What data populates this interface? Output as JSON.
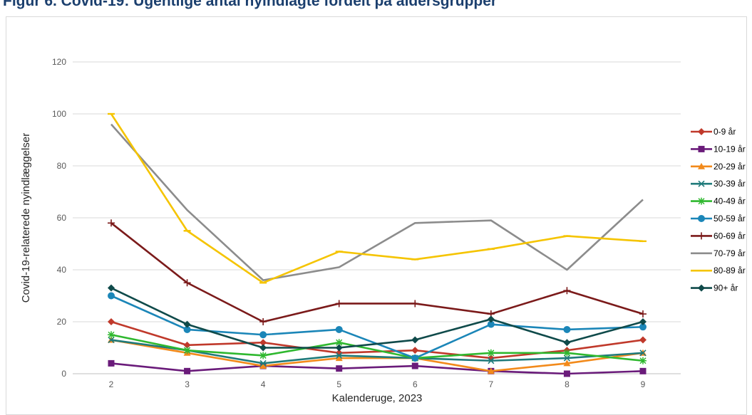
{
  "figure": {
    "title": "Figur 6. Covid-19: Ugentlige antal nyindlagte fordelt på aldersgrupper"
  },
  "chart_data": {
    "type": "line",
    "xlabel": "Kalenderuge, 2023",
    "ylabel": "Covid-19-relaterede nyindlæggelser",
    "x": [
      2,
      3,
      4,
      5,
      6,
      7,
      8,
      9
    ],
    "ylim": [
      0,
      120
    ],
    "yticks": [
      0,
      20,
      40,
      60,
      80,
      100,
      120
    ],
    "grid": "horizontal",
    "legend_position": "right",
    "series": [
      {
        "name": "0-9 år",
        "color": "#c0392b",
        "marker": "diamond",
        "values": [
          20,
          11,
          12,
          8,
          9,
          6,
          9,
          13
        ]
      },
      {
        "name": "10-19 år",
        "color": "#6a1b7a",
        "marker": "square",
        "values": [
          4,
          1,
          3,
          2,
          3,
          1,
          0,
          1
        ]
      },
      {
        "name": "20-29 år",
        "color": "#f28a1b",
        "marker": "triangle",
        "values": [
          13,
          8,
          3,
          6,
          6,
          1,
          4,
          8
        ]
      },
      {
        "name": "30-39 år",
        "color": "#1f7a7a",
        "marker": "x",
        "values": [
          13,
          9,
          4,
          7,
          6,
          5,
          6,
          8
        ]
      },
      {
        "name": "40-49 år",
        "color": "#2fb82f",
        "marker": "star",
        "values": [
          15,
          9,
          7,
          12,
          6,
          8,
          8,
          5
        ]
      },
      {
        "name": "50-59 år",
        "color": "#1b86b8",
        "marker": "circle",
        "values": [
          30,
          17,
          15,
          17,
          6,
          19,
          17,
          18
        ]
      },
      {
        "name": "60-69 år",
        "color": "#7b1a1a",
        "marker": "plus",
        "values": [
          58,
          35,
          20,
          27,
          27,
          23,
          32,
          23
        ]
      },
      {
        "name": "70-79 år",
        "color": "#8c8c8c",
        "marker": "none",
        "values": [
          96,
          63,
          36,
          41,
          58,
          59,
          40,
          67
        ]
      },
      {
        "name": "80-89 år",
        "color": "#f5c400",
        "marker": "dash",
        "values": [
          100,
          55,
          35,
          47,
          44,
          48,
          53,
          51
        ]
      },
      {
        "name": "90+ år",
        "color": "#0f4a4a",
        "marker": "diamond",
        "values": [
          33,
          19,
          10,
          10,
          13,
          21,
          12,
          20
        ]
      }
    ]
  }
}
